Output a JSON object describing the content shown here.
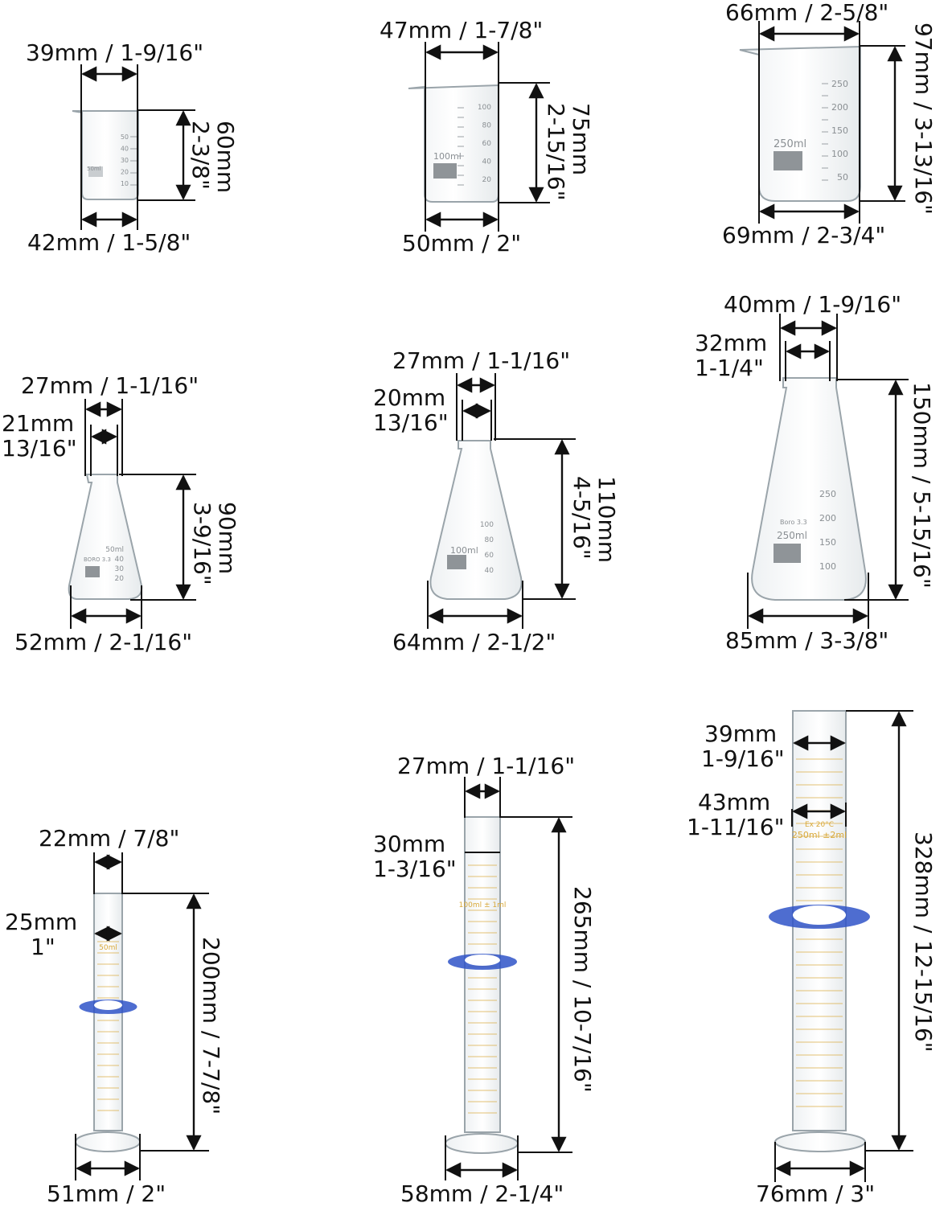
{
  "items": [
    {
      "name": "beaker-50ml",
      "top": "39mm / 1-9/16\"",
      "bottom": "42mm / 1-5/8\"",
      "height": [
        "60mm",
        "2-3/8\""
      ],
      "marks": [
        "50",
        "40",
        "30",
        "20",
        "10"
      ],
      "label": "50ml"
    },
    {
      "name": "beaker-100ml",
      "top": "47mm / 1-7/8\"",
      "bottom": "50mm / 2\"",
      "height": [
        "75mm",
        "2-15/16\""
      ],
      "marks": [
        "100",
        "80",
        "60",
        "40",
        "20"
      ],
      "label": "100ml"
    },
    {
      "name": "beaker-250ml",
      "top": "66mm / 2-5/8\"",
      "bottom": "69mm / 2-3/4\"",
      "height": [
        "97mm / 3-13/16\""
      ],
      "marks": [
        "250",
        "200",
        "150",
        "100",
        "50"
      ],
      "label": "250ml"
    },
    {
      "name": "flask-50ml",
      "outer": "27mm / 1-1/16\"",
      "inner": [
        "21mm",
        "13/16\""
      ],
      "bottom": "52mm / 2-1/16\"",
      "height": [
        "90mm",
        "3-9/16\""
      ],
      "marks": [
        "50ml",
        "40",
        "30",
        "20"
      ],
      "label": "BORO 3.3"
    },
    {
      "name": "flask-100ml",
      "outer": "27mm / 1-1/16\"",
      "inner": [
        "20mm",
        "13/16\""
      ],
      "bottom": "64mm / 2-1/2\"",
      "height": [
        "110mm",
        "4-5/16\""
      ],
      "marks": [
        "100",
        "80",
        "60",
        "40"
      ],
      "label": "100ml"
    },
    {
      "name": "flask-250ml",
      "outer": "40mm / 1-9/16\"",
      "inner": [
        "32mm",
        "1-1/4\""
      ],
      "bottom": "85mm / 3-3/8\"",
      "height": [
        "150mm / 5-15/16\""
      ],
      "marks": [
        "250",
        "200",
        "150",
        "100"
      ],
      "label": "250ml",
      "brand": "Boro 3.3"
    },
    {
      "name": "cylinder-50ml",
      "top": "22mm / 7/8\"",
      "inner": [
        "25mm",
        "1\""
      ],
      "bottom": "51mm / 2\"",
      "height": [
        "200mm / 7-7/8\""
      ],
      "label": "50ml"
    },
    {
      "name": "cylinder-100ml",
      "top": "27mm / 1-1/16\"",
      "inner": [
        "30mm",
        "1-3/16\""
      ],
      "bottom": "58mm / 2-1/4\"",
      "height": [
        "265mm / 10-7/16\""
      ],
      "label": "100ml ± 1ml"
    },
    {
      "name": "cylinder-250ml",
      "top": [
        "39mm",
        "1-9/16\""
      ],
      "inner": [
        "43mm",
        "1-11/16\""
      ],
      "bottom": "76mm / 3\"",
      "height": [
        "328mm / 12-15/16\""
      ],
      "label": "250ml ±2ml",
      "sub": "Ex 20°C"
    }
  ],
  "colors": {
    "ink": "#111111",
    "glass": "#9aa4aa",
    "ring": "#2f53c8",
    "scale": "#d9a93a"
  }
}
